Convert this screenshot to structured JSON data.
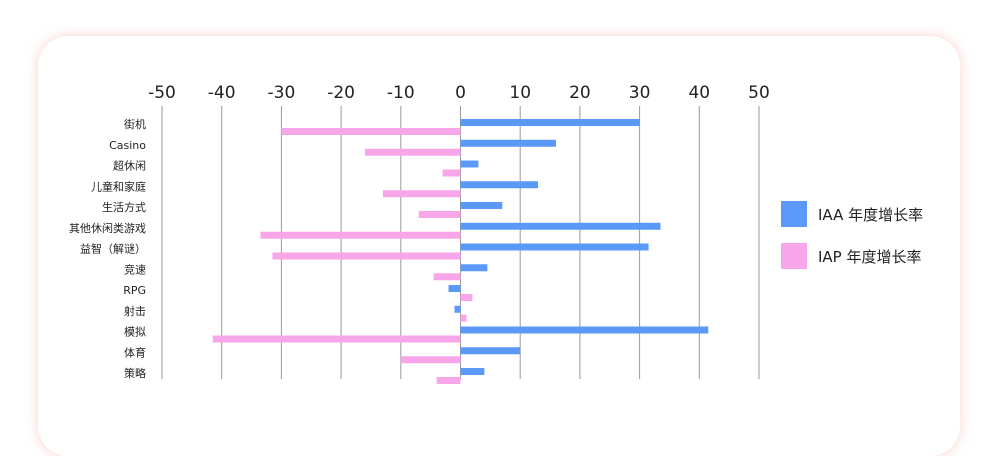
{
  "chart_data": {
    "type": "bar",
    "orientation": "horizontal",
    "title": "",
    "xlabel": "",
    "ylabel": "",
    "xlim": [
      -50,
      50
    ],
    "x_ticks": [
      -50,
      -40,
      -30,
      -20,
      -10,
      0,
      10,
      20,
      30,
      40,
      50
    ],
    "x_tick_labels": [
      "-50",
      "-40",
      "-30",
      "-20",
      "-10",
      "0",
      "10",
      "20",
      "30",
      "40",
      "50"
    ],
    "grid": true,
    "legend_position": "right",
    "categories": [
      "街机",
      "Casino",
      "超休闲",
      "儿童和家庭",
      "生活方式",
      "其他休闲类游戏",
      "益智（解谜）",
      "竞速",
      "RPG",
      "射击",
      "模拟",
      "体育",
      "策略"
    ],
    "series": [
      {
        "name": "IAA 年度增长率",
        "color": "#5b99f8",
        "values": [
          30,
          16,
          3,
          13,
          7,
          33.5,
          31.5,
          4.5,
          -2,
          -1,
          41.5,
          10,
          4
        ]
      },
      {
        "name": "IAP 年度增长率",
        "color": "#f7a6ea",
        "values": [
          -30,
          -16,
          -3,
          -13,
          -7,
          -33.5,
          -31.5,
          -4.5,
          2,
          1,
          -41.5,
          -10,
          -4
        ]
      }
    ]
  }
}
